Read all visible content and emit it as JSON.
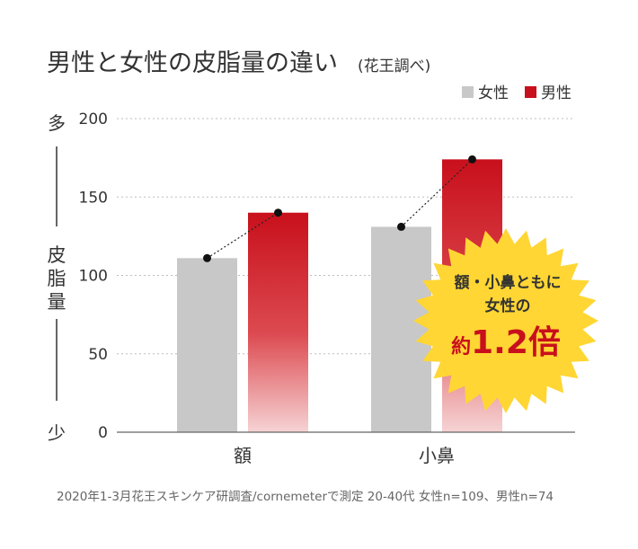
{
  "chart_data": {
    "type": "bar",
    "title": "男性と女性の皮脂量の違い",
    "subtitle": "(花王調べ)",
    "categories": [
      "額",
      "小鼻"
    ],
    "series": [
      {
        "name": "女性",
        "color": "#c8c8c8",
        "values": [
          111,
          131
        ]
      },
      {
        "name": "男性",
        "color": "#c8101c",
        "values": [
          140,
          174
        ]
      }
    ],
    "ylim": [
      0,
      200
    ],
    "yticks": [
      "0",
      "50",
      "100",
      "150",
      "200"
    ],
    "ylabel": "皮脂量",
    "ylabel_top": "多",
    "ylabel_bottom": "少",
    "grid": "dotted",
    "legend": "top-right",
    "annotation": {
      "line1": "額・小鼻ともに",
      "line2": "女性の",
      "line3_prefix": "約",
      "line3_value": "1.2倍",
      "color": "#ffd633",
      "text_color": "#c8101c"
    },
    "footnote": "2020年1-3月花王スキンケア研調査/cornemeterで測定 20-40代 女性n=109、男性n=74"
  }
}
